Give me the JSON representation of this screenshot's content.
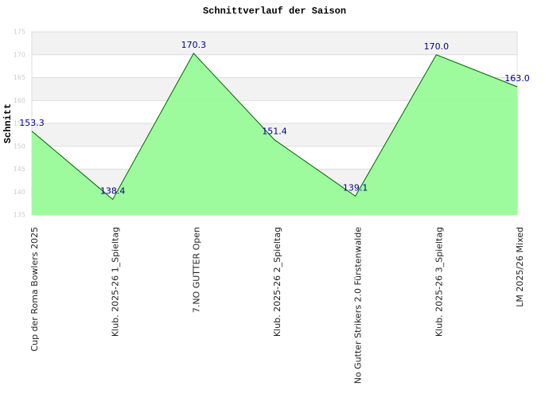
{
  "chart_data": {
    "type": "area",
    "title": "Schnittverlauf der Saison",
    "y_label": "Schnitt",
    "categories": [
      "Cup der Roma Bowlers 2025",
      "Klub. 2025-26  1_Spieltag",
      "7.NO GUTTER Open",
      "Klub. 2025-26  2_Spieltag",
      "No Gutter Strikers 2.0 Fürstenwalde",
      "Klub. 2025-26  3_Spieltag",
      "LM 2025/26 Mixed"
    ],
    "values": [
      153.3,
      138.4,
      170.3,
      151.4,
      139.1,
      170.0,
      163.0
    ],
    "value_labels": [
      "153.3",
      "138.4",
      "170.3",
      "151.4",
      "139.1",
      "170.0",
      "163.0"
    ],
    "color": "#006400",
    "fill": "#98fb98",
    "ylim": [
      135,
      175
    ],
    "yticks": [
      135,
      140,
      145,
      150,
      155,
      160,
      165,
      170,
      175
    ],
    "grid": true
  }
}
